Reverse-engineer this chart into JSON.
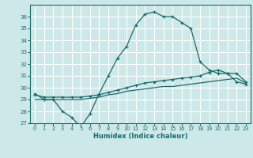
{
  "xlabel": "Humidex (Indice chaleur)",
  "bg_color": "#cde8e8",
  "grid_color": "#ffffff",
  "line_color": "#1a6b6b",
  "xlim": [
    -0.5,
    23.5
  ],
  "ylim": [
    27,
    37
  ],
  "yticks": [
    27,
    28,
    29,
    30,
    31,
    32,
    33,
    34,
    35,
    36
  ],
  "xticks": [
    0,
    1,
    2,
    3,
    4,
    5,
    6,
    7,
    8,
    9,
    10,
    11,
    12,
    13,
    14,
    15,
    16,
    17,
    18,
    19,
    20,
    21,
    22,
    23
  ],
  "series1_x": [
    0,
    1,
    2,
    3,
    4,
    5,
    6,
    7,
    8,
    9,
    10,
    11,
    12,
    13,
    14,
    15,
    16,
    17,
    18,
    19,
    20,
    21,
    22,
    23
  ],
  "series1_y": [
    29.5,
    29.0,
    29.0,
    28.0,
    27.5,
    26.7,
    27.8,
    29.5,
    31.0,
    32.5,
    33.5,
    35.3,
    36.2,
    36.4,
    36.0,
    36.0,
    35.5,
    35.0,
    32.2,
    31.5,
    31.2,
    31.2,
    30.5,
    30.3
  ],
  "series2_x": [
    0,
    1,
    2,
    3,
    4,
    5,
    6,
    7,
    8,
    9,
    10,
    11,
    12,
    13,
    14,
    15,
    16,
    17,
    18,
    19,
    20,
    21,
    22,
    23
  ],
  "series2_y": [
    29.4,
    29.2,
    29.2,
    29.2,
    29.2,
    29.2,
    29.3,
    29.4,
    29.6,
    29.8,
    30.0,
    30.2,
    30.4,
    30.5,
    30.6,
    30.7,
    30.8,
    30.9,
    31.0,
    31.3,
    31.5,
    31.2,
    31.2,
    30.5
  ],
  "series3_x": [
    0,
    1,
    2,
    3,
    4,
    5,
    6,
    7,
    8,
    9,
    10,
    11,
    12,
    13,
    14,
    15,
    16,
    17,
    18,
    19,
    20,
    21,
    22,
    23
  ],
  "series3_y": [
    29.0,
    29.0,
    29.0,
    29.0,
    29.0,
    29.0,
    29.1,
    29.2,
    29.4,
    29.5,
    29.7,
    29.8,
    29.9,
    30.0,
    30.1,
    30.1,
    30.2,
    30.3,
    30.4,
    30.5,
    30.6,
    30.7,
    30.8,
    30.4
  ]
}
